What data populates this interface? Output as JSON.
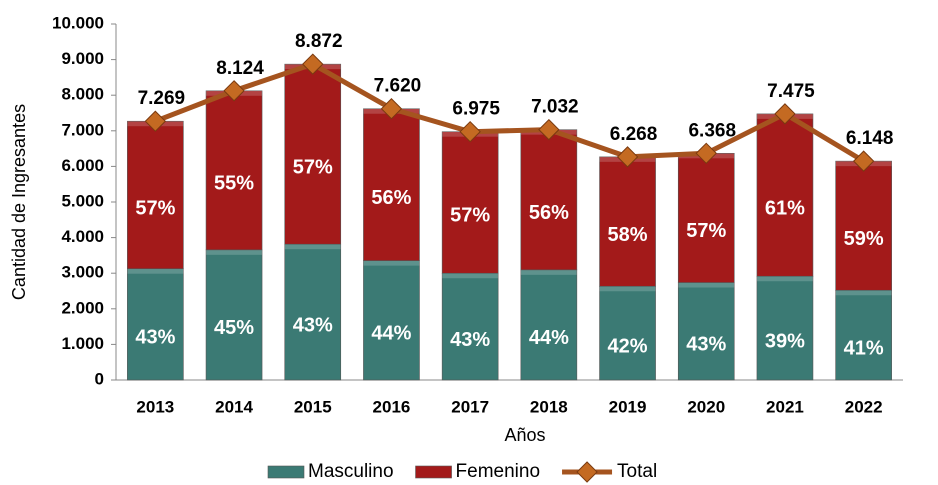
{
  "chart_data": {
    "type": "stacked_bar_line",
    "x_label": "Años",
    "y_label": "Cantidad de Ingresantes",
    "categories": [
      "2013",
      "2014",
      "2015",
      "2016",
      "2017",
      "2018",
      "2019",
      "2020",
      "2021",
      "2022"
    ],
    "series": [
      {
        "name": "Masculino",
        "color": "#3b7a74",
        "values": [
          3126,
          3656,
          3815,
          3353,
          2999,
          3094,
          2633,
          2738,
          2915,
          2521
        ],
        "labels": [
          "43%",
          "45%",
          "43%",
          "44%",
          "43%",
          "44%",
          "42%",
          "43%",
          "39%",
          "41%"
        ]
      },
      {
        "name": "Femenino",
        "color": "#a31a1a",
        "values": [
          4143,
          4468,
          5057,
          4267,
          3976,
          3938,
          3635,
          3630,
          4560,
          3627
        ],
        "labels": [
          "57%",
          "55%",
          "57%",
          "56%",
          "57%",
          "56%",
          "58%",
          "57%",
          "61%",
          "59%"
        ]
      }
    ],
    "line": {
      "name": "Total",
      "color": "#a5541f",
      "values": [
        7269,
        8124,
        8872,
        7620,
        6975,
        7032,
        6268,
        6368,
        7475,
        6148
      ],
      "value_labels": [
        "7.269",
        "8.124",
        "8.872",
        "7.620",
        "6.975",
        "7.032",
        "6.268",
        "6.368",
        "7.475",
        "6.148"
      ]
    },
    "ylim": [
      0,
      10000
    ],
    "yticks": [
      0,
      {
        "value": 1000,
        "label": "1.000"
      },
      {
        "value": 2000,
        "label": "2.000"
      },
      {
        "value": 3000,
        "label": "3.000"
      },
      {
        "value": 4000,
        "label": "4.000"
      },
      {
        "value": 5000,
        "label": "5.000"
      },
      {
        "value": 6000,
        "label": "6.000"
      },
      {
        "value": 7000,
        "label": "7.000"
      },
      {
        "value": 8000,
        "label": "8.000"
      },
      {
        "value": 9000,
        "label": "9.000"
      },
      {
        "value": 10000,
        "label": "10.000"
      }
    ],
    "legend": "bottom"
  }
}
